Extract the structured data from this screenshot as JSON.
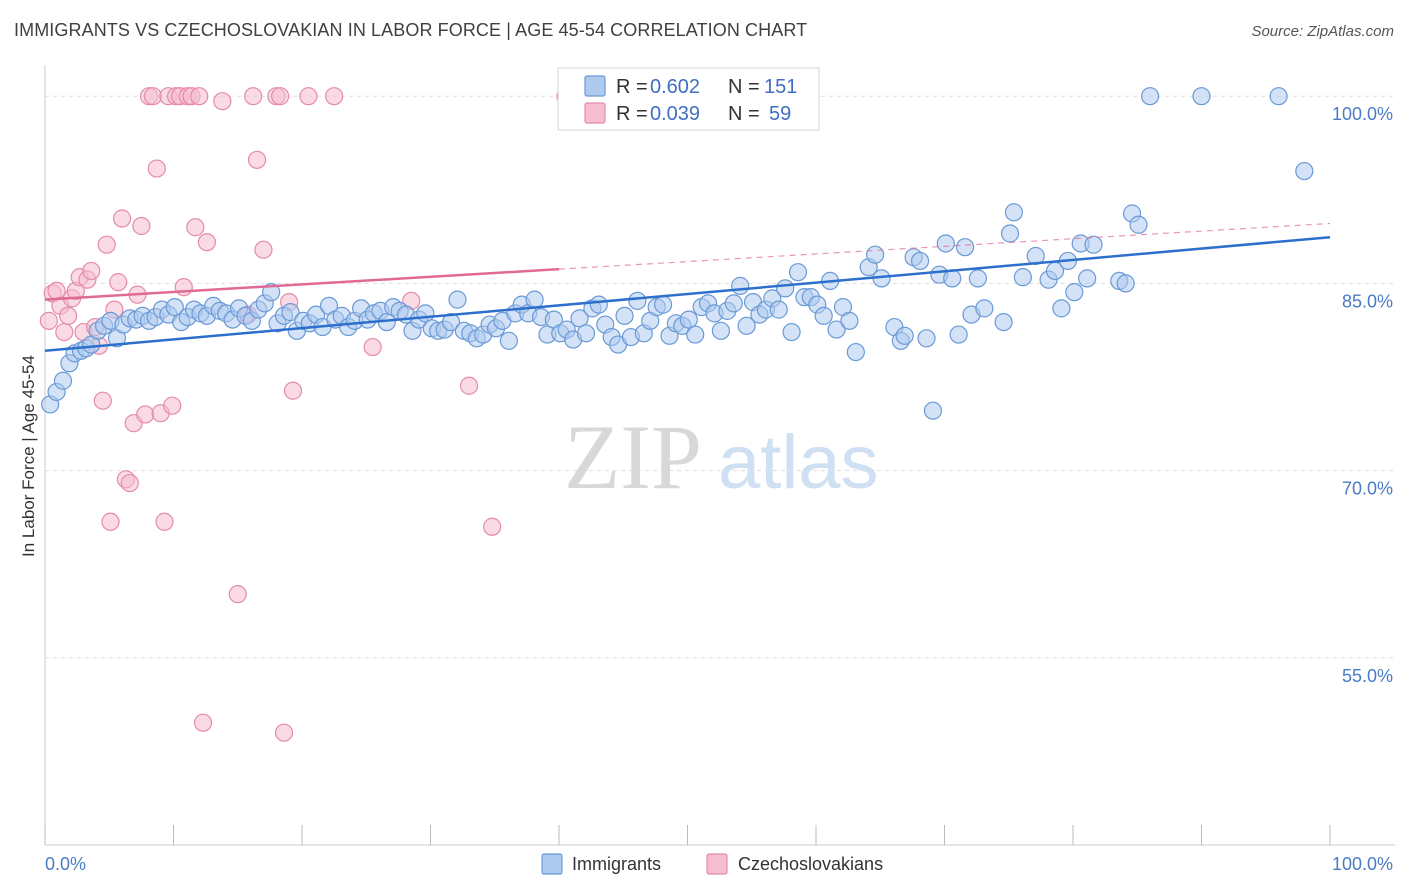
{
  "header": {
    "title": "IMMIGRANTS VS CZECHOSLOVAKIAN IN LABOR FORCE | AGE 45-54 CORRELATION CHART",
    "source": "Source: ZipAtlas.com"
  },
  "watermark": {
    "zip": "ZIP",
    "atlas": "atlas"
  },
  "colors": {
    "blue_fill": "#aecbef",
    "blue_stroke": "#6a9ad6",
    "blue_line": "#2d6fcc",
    "pink_fill": "#f6bdd0",
    "pink_stroke": "#e58aab",
    "pink_line": "#e06a95",
    "tick": "#4a7cc4",
    "grid": "#dddddd"
  },
  "chart_data": {
    "type": "scatter",
    "xlabel": "",
    "ylabel": "In Labor Force | Age 45-54",
    "xlim": [
      0,
      100
    ],
    "ylim": [
      40,
      102.5
    ],
    "x_tick_labels": [
      "0.0%",
      "100.0%"
    ],
    "y_ticks": [
      55,
      70,
      85,
      100
    ],
    "y_tick_labels": [
      "55.0%",
      "70.0%",
      "85.0%",
      "100.0%"
    ],
    "grid": true,
    "legend_placement": "top-center",
    "legend": [
      {
        "r_label": "R =",
        "r_value": "0.602",
        "n_label": "N =",
        "n_value": "151"
      },
      {
        "r_label": "R =",
        "r_value": "0.039",
        "n_label": "N =",
        "n_value": "59"
      }
    ],
    "series": [
      {
        "name": "Immigrants",
        "trend": {
          "x0": 0,
          "y0": 79.6,
          "x1": 100,
          "y1": 88.7,
          "dashed_from": null
        },
        "points": [
          [
            0.4,
            75.3
          ],
          [
            0.9,
            76.3
          ],
          [
            1.4,
            77.2
          ],
          [
            1.9,
            78.6
          ],
          [
            2.3,
            79.4
          ],
          [
            2.8,
            79.6
          ],
          [
            3.2,
            79.8
          ],
          [
            3.6,
            80.1
          ],
          [
            4.1,
            81.2
          ],
          [
            4.6,
            81.6
          ],
          [
            5.1,
            82.0
          ],
          [
            5.6,
            80.6
          ],
          [
            6.1,
            81.7
          ],
          [
            6.6,
            82.2
          ],
          [
            7.1,
            82.1
          ],
          [
            7.6,
            82.4
          ],
          [
            8.1,
            82.0
          ],
          [
            8.6,
            82.3
          ],
          [
            9.1,
            82.9
          ],
          [
            9.6,
            82.5
          ],
          [
            10.1,
            83.1
          ],
          [
            10.6,
            81.9
          ],
          [
            11.1,
            82.3
          ],
          [
            11.6,
            82.9
          ],
          [
            12.1,
            82.6
          ],
          [
            12.6,
            82.4
          ],
          [
            13.1,
            83.2
          ],
          [
            13.6,
            82.8
          ],
          [
            14.1,
            82.6
          ],
          [
            14.6,
            82.1
          ],
          [
            15.1,
            83.0
          ],
          [
            15.6,
            82.4
          ],
          [
            16.1,
            82.0
          ],
          [
            16.6,
            82.9
          ],
          [
            17.1,
            83.4
          ],
          [
            17.6,
            84.3
          ],
          [
            18.1,
            81.8
          ],
          [
            18.6,
            82.4
          ],
          [
            19.1,
            82.7
          ],
          [
            19.6,
            81.2
          ],
          [
            20.1,
            82.0
          ],
          [
            20.6,
            81.8
          ],
          [
            21.1,
            82.5
          ],
          [
            21.6,
            81.5
          ],
          [
            22.1,
            83.2
          ],
          [
            22.6,
            82.1
          ],
          [
            23.1,
            82.4
          ],
          [
            23.6,
            81.5
          ],
          [
            24.1,
            82.0
          ],
          [
            24.6,
            83.0
          ],
          [
            25.1,
            82.1
          ],
          [
            25.6,
            82.6
          ],
          [
            26.1,
            82.8
          ],
          [
            26.6,
            81.9
          ],
          [
            27.1,
            83.1
          ],
          [
            27.6,
            82.8
          ],
          [
            28.1,
            82.5
          ],
          [
            28.6,
            81.2
          ],
          [
            29.1,
            82.1
          ],
          [
            29.6,
            82.6
          ],
          [
            30.1,
            81.4
          ],
          [
            30.6,
            81.2
          ],
          [
            31.1,
            81.3
          ],
          [
            31.6,
            81.9
          ],
          [
            32.1,
            83.7
          ],
          [
            32.6,
            81.2
          ],
          [
            33.1,
            81.0
          ],
          [
            33.6,
            80.6
          ],
          [
            34.1,
            80.9
          ],
          [
            34.6,
            81.7
          ],
          [
            35.1,
            81.4
          ],
          [
            35.6,
            82.0
          ],
          [
            36.1,
            80.4
          ],
          [
            36.6,
            82.6
          ],
          [
            37.1,
            83.3
          ],
          [
            37.6,
            82.6
          ],
          [
            38.1,
            83.7
          ],
          [
            38.6,
            82.3
          ],
          [
            39.1,
            80.9
          ],
          [
            39.6,
            82.1
          ],
          [
            40.1,
            81.0
          ],
          [
            40.6,
            81.3
          ],
          [
            41.1,
            80.5
          ],
          [
            41.6,
            82.2
          ],
          [
            42.1,
            81.0
          ],
          [
            42.6,
            83.0
          ],
          [
            43.1,
            83.3
          ],
          [
            43.6,
            81.7
          ],
          [
            44.1,
            80.7
          ],
          [
            44.6,
            80.1
          ],
          [
            45.1,
            82.4
          ],
          [
            45.6,
            80.7
          ],
          [
            46.1,
            83.6
          ],
          [
            46.6,
            81.0
          ],
          [
            47.1,
            82.0
          ],
          [
            47.6,
            83.1
          ],
          [
            48.1,
            83.3
          ],
          [
            48.6,
            80.8
          ],
          [
            49.1,
            81.8
          ],
          [
            49.6,
            81.6
          ],
          [
            50.1,
            82.1
          ],
          [
            50.6,
            80.9
          ],
          [
            51.1,
            83.1
          ],
          [
            51.6,
            83.4
          ],
          [
            52.1,
            82.6
          ],
          [
            52.6,
            81.2
          ],
          [
            53.1,
            82.8
          ],
          [
            53.6,
            83.4
          ],
          [
            54.1,
            84.8
          ],
          [
            54.6,
            81.6
          ],
          [
            55.1,
            83.5
          ],
          [
            55.6,
            82.5
          ],
          [
            56.1,
            82.9
          ],
          [
            56.6,
            83.8
          ],
          [
            57.1,
            82.9
          ],
          [
            57.6,
            84.6
          ],
          [
            58.1,
            81.1
          ],
          [
            58.6,
            85.9
          ],
          [
            59.1,
            83.9
          ],
          [
            59.6,
            83.9
          ],
          [
            60.1,
            83.3
          ],
          [
            60.6,
            82.4
          ],
          [
            61.1,
            85.2
          ],
          [
            61.6,
            81.3
          ],
          [
            62.1,
            83.1
          ],
          [
            62.6,
            82.0
          ],
          [
            63.1,
            79.5
          ],
          [
            64.1,
            86.3
          ],
          [
            64.6,
            87.3
          ],
          [
            65.1,
            85.4
          ],
          [
            66.1,
            81.5
          ],
          [
            66.6,
            80.4
          ],
          [
            66.9,
            80.8
          ],
          [
            67.6,
            87.1
          ],
          [
            68.1,
            86.8
          ],
          [
            68.6,
            80.6
          ],
          [
            69.1,
            74.8
          ],
          [
            69.6,
            85.7
          ],
          [
            70.1,
            88.2
          ],
          [
            70.6,
            85.4
          ],
          [
            71.1,
            80.9
          ],
          [
            71.6,
            87.9
          ],
          [
            72.1,
            82.5
          ],
          [
            72.6,
            85.4
          ],
          [
            73.1,
            83.0
          ],
          [
            74.6,
            81.9
          ],
          [
            75.1,
            89.0
          ],
          [
            75.4,
            90.7
          ],
          [
            76.1,
            85.5
          ],
          [
            77.1,
            87.2
          ],
          [
            78.1,
            85.3
          ],
          [
            78.6,
            86.0
          ],
          [
            79.1,
            83.0
          ],
          [
            79.6,
            86.8
          ],
          [
            80.1,
            84.3
          ],
          [
            80.6,
            88.2
          ],
          [
            81.1,
            85.4
          ],
          [
            81.6,
            88.1
          ],
          [
            83.6,
            85.2
          ],
          [
            84.1,
            85.0
          ],
          [
            84.6,
            90.6
          ],
          [
            85.1,
            89.7
          ],
          [
            86.0,
            100.0
          ],
          [
            90.0,
            100.0
          ],
          [
            96.0,
            100.0
          ],
          [
            98.0,
            94.0
          ]
        ]
      },
      {
        "name": "Czechoslovakians",
        "trend": {
          "x0": 0,
          "y0": 83.7,
          "x1": 100,
          "y1": 89.8,
          "dashed_from": 40
        },
        "points": [
          [
            0.3,
            82.0
          ],
          [
            0.6,
            84.2
          ],
          [
            0.9,
            84.4
          ],
          [
            1.2,
            83.2
          ],
          [
            1.5,
            81.1
          ],
          [
            1.8,
            82.4
          ],
          [
            2.1,
            83.8
          ],
          [
            2.4,
            84.4
          ],
          [
            2.7,
            85.5
          ],
          [
            3.0,
            81.1
          ],
          [
            3.3,
            85.3
          ],
          [
            3.6,
            86.0
          ],
          [
            3.9,
            81.5
          ],
          [
            4.2,
            80.0
          ],
          [
            4.5,
            75.6
          ],
          [
            4.8,
            88.1
          ],
          [
            5.1,
            65.9
          ],
          [
            5.4,
            82.9
          ],
          [
            5.7,
            85.1
          ],
          [
            6.0,
            90.2
          ],
          [
            6.3,
            69.3
          ],
          [
            6.6,
            69.0
          ],
          [
            6.9,
            73.8
          ],
          [
            7.2,
            84.1
          ],
          [
            7.5,
            89.6
          ],
          [
            7.8,
            74.5
          ],
          [
            8.1,
            100.0
          ],
          [
            8.4,
            100.0
          ],
          [
            8.7,
            94.2
          ],
          [
            9.0,
            74.6
          ],
          [
            9.3,
            65.9
          ],
          [
            9.6,
            100.0
          ],
          [
            9.9,
            75.2
          ],
          [
            10.2,
            100.0
          ],
          [
            10.5,
            100.0
          ],
          [
            10.8,
            84.7
          ],
          [
            11.1,
            100.0
          ],
          [
            11.4,
            100.0
          ],
          [
            11.7,
            89.5
          ],
          [
            12.0,
            100.0
          ],
          [
            12.3,
            49.8
          ],
          [
            12.6,
            88.3
          ],
          [
            13.8,
            99.6
          ],
          [
            15.0,
            60.1
          ],
          [
            15.8,
            82.5
          ],
          [
            16.2,
            100.0
          ],
          [
            16.5,
            94.9
          ],
          [
            17.0,
            87.7
          ],
          [
            18.0,
            100.0
          ],
          [
            18.3,
            100.0
          ],
          [
            18.6,
            49.0
          ],
          [
            19.0,
            83.5
          ],
          [
            19.3,
            76.4
          ],
          [
            20.5,
            100.0
          ],
          [
            22.5,
            100.0
          ],
          [
            25.5,
            79.9
          ],
          [
            28.5,
            83.6
          ],
          [
            33.0,
            76.8
          ],
          [
            34.8,
            65.5
          ],
          [
            40.5,
            100.0
          ]
        ]
      }
    ]
  }
}
